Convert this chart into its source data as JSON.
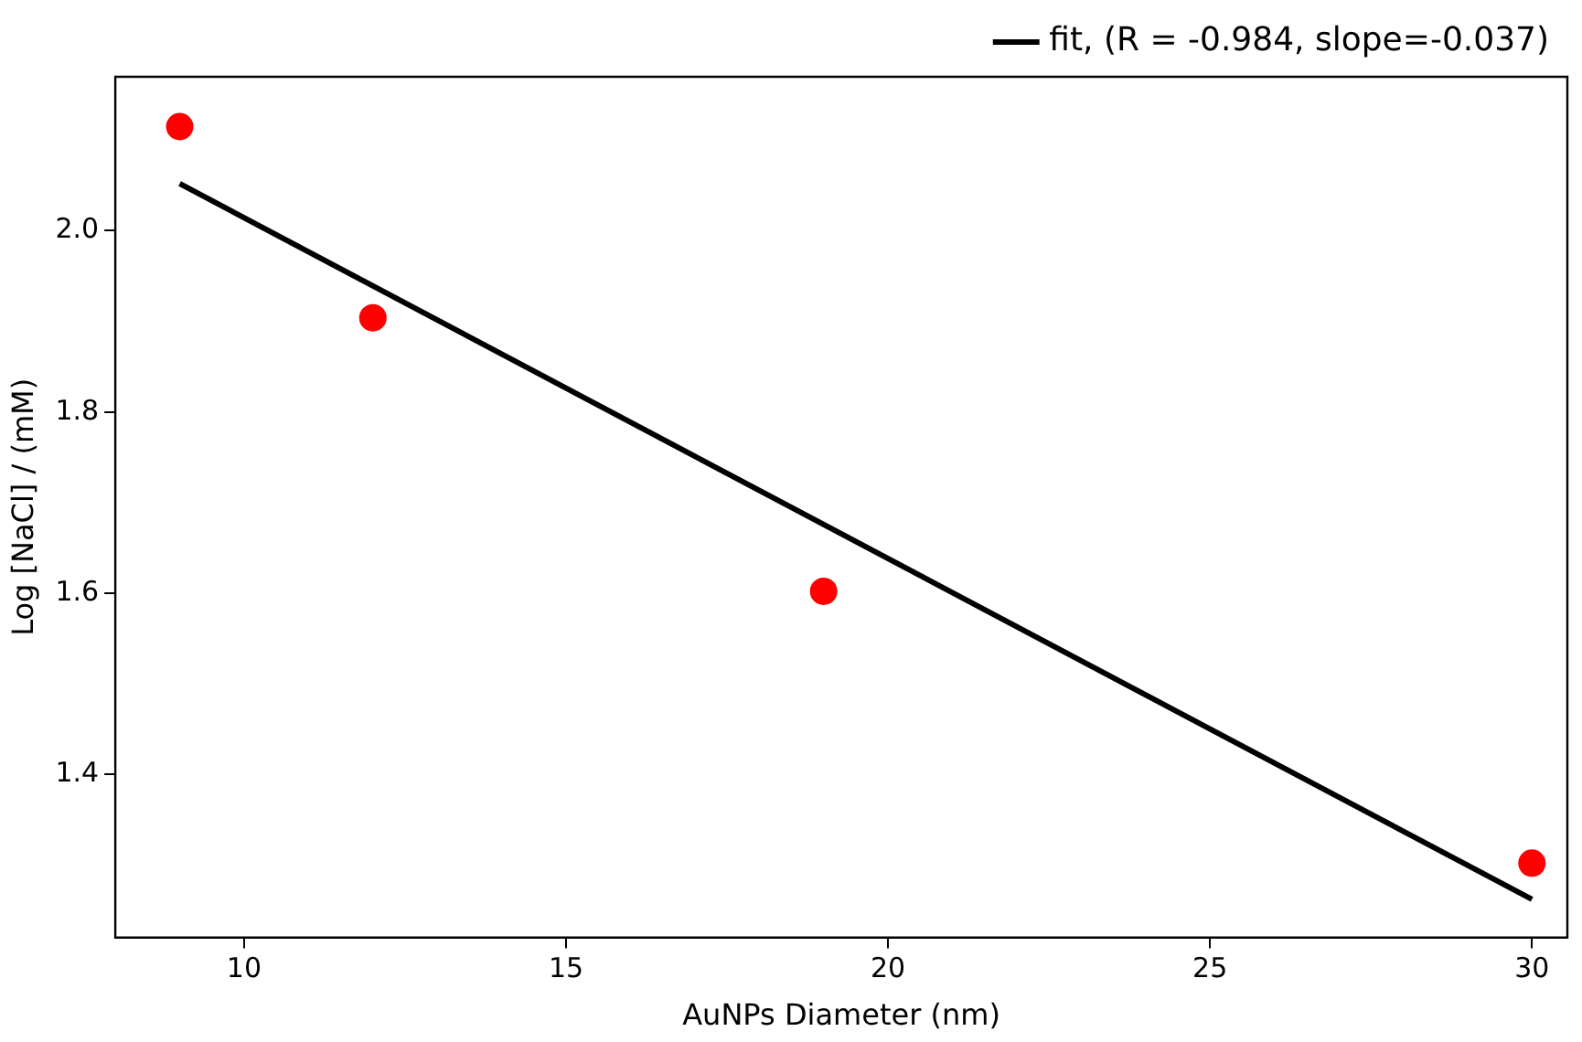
{
  "chart_data": {
    "type": "scatter",
    "xlabel": "AuNPs Diameter (nm)",
    "ylabel": "Log [NaCl] / (mM)",
    "series": [
      {
        "type": "scatter",
        "color": "#ff0000",
        "marker": "circle",
        "x": [
          9,
          12,
          19,
          30
        ],
        "values": [
          2.115,
          1.904,
          1.602,
          1.302
        ]
      },
      {
        "type": "line",
        "name": "fit, (R = -0.984, slope=-0.037)",
        "color": "#000000",
        "marker": "none",
        "line_style": "solid",
        "x": [
          9,
          30
        ],
        "values": [
          2.052,
          1.262
        ]
      }
    ],
    "xlim": [
      8,
      30.55
    ],
    "ylim": [
      1.22,
      2.17
    ],
    "xticks": [
      10,
      15,
      20,
      25,
      30
    ],
    "yticks": [
      1.4,
      1.6,
      1.8,
      {
        "value": 2,
        "label": "2.0"
      }
    ],
    "grid": false,
    "legend": "top right"
  }
}
